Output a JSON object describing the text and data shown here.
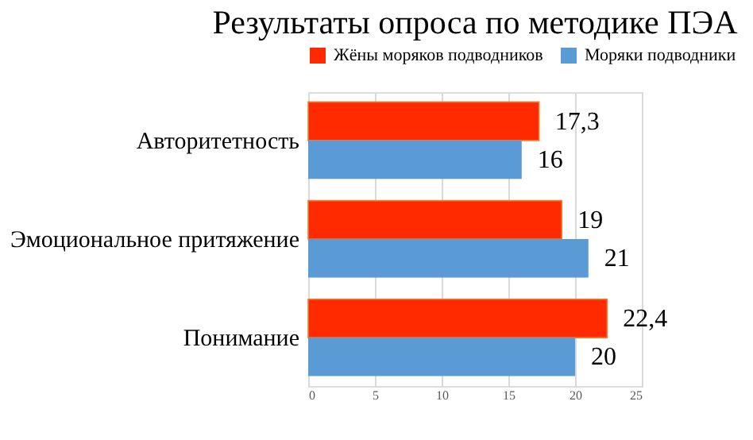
{
  "chart_data": {
    "type": "bar",
    "orientation": "horizontal",
    "title": "Результаты опроса по методике ПЭА",
    "categories": [
      "Авторитетность",
      "Эмоциональное притяжение",
      "Понимание"
    ],
    "series": [
      {
        "name": "Жёны моряков подводников",
        "color": "#ff2a00",
        "values": [
          17.3,
          19,
          22.4
        ],
        "value_labels": [
          "17,3",
          "19",
          "22,4"
        ]
      },
      {
        "name": "Моряки подводники",
        "color": "#5b9bd5",
        "values": [
          16,
          21,
          20
        ],
        "value_labels": [
          "16",
          "21",
          "20"
        ]
      }
    ],
    "xlim": [
      0,
      25
    ],
    "xticks": [
      0,
      5,
      10,
      15,
      20,
      25
    ],
    "grid": "x",
    "legend": "top"
  }
}
